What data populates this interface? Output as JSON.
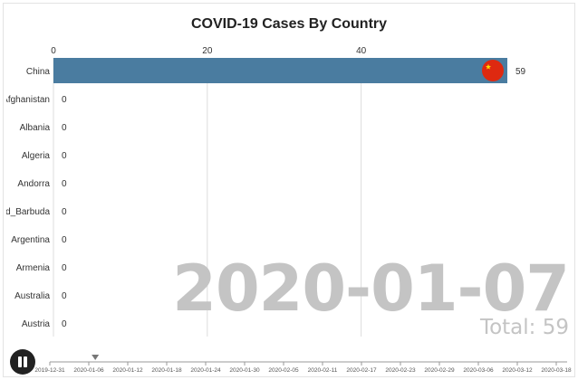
{
  "chart_data": {
    "type": "bar",
    "title": "COVID-19 Cases By Country",
    "orientation": "horizontal",
    "categories": [
      "China",
      "Afghanistan",
      "Albania",
      "Algeria",
      "Andorra",
      "Antigua_and_Barbuda",
      "Argentina",
      "Armenia",
      "Australia",
      "Austria"
    ],
    "values": [
      59,
      0,
      0,
      0,
      0,
      0,
      0,
      0,
      0,
      0
    ],
    "xlim": [
      0,
      59
    ],
    "x_ticks": [
      0,
      20,
      40
    ],
    "grid": true,
    "bar_color": "#4a7ca0",
    "flag_icon": "china-flag-icon",
    "current_date": "2020-01-07",
    "total_label": "Total: 59",
    "timeline_labels": [
      "2019-12-31",
      "2020-01-06",
      "2020-01-12",
      "2020-01-18",
      "2020-01-24",
      "2020-01-30",
      "2020-02-05",
      "2020-02-11",
      "2020-02-17",
      "2020-02-23",
      "2020-02-29",
      "2020-03-06",
      "2020-03-12",
      "2020-03-18"
    ]
  },
  "controls": {
    "play_state": "pause-icon"
  }
}
